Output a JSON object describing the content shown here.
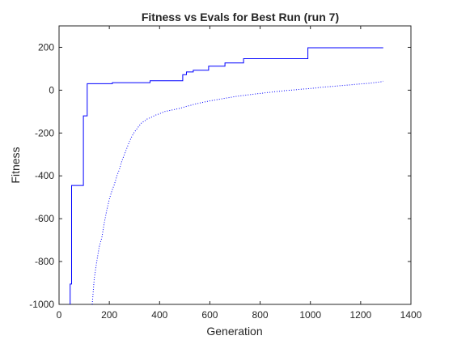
{
  "chart_data": {
    "type": "line",
    "title": "Fitness vs Evals for Best Run (run 7)",
    "xlabel": "Generation",
    "ylabel": "Fitness",
    "xlim": [
      0,
      1400
    ],
    "ylim": [
      -1000,
      300
    ],
    "xticks": [
      0,
      200,
      400,
      600,
      800,
      1000,
      1200,
      1400
    ],
    "yticks": [
      -1000,
      -800,
      -600,
      -400,
      -200,
      0,
      200
    ],
    "grid": false,
    "legend": "none",
    "series": [
      {
        "style": "solid",
        "color": "#0000ff",
        "step": true,
        "points": [
          [
            44,
            -1000
          ],
          [
            44,
            -905
          ],
          [
            50,
            -905
          ],
          [
            50,
            -445
          ],
          [
            97,
            -445
          ],
          [
            97,
            -120
          ],
          [
            112,
            -120
          ],
          [
            112,
            30
          ],
          [
            212,
            30
          ],
          [
            212,
            35
          ],
          [
            362,
            35
          ],
          [
            362,
            44
          ],
          [
            492,
            44
          ],
          [
            492,
            72
          ],
          [
            507,
            72
          ],
          [
            507,
            85
          ],
          [
            534,
            85
          ],
          [
            534,
            93
          ],
          [
            595,
            93
          ],
          [
            595,
            112
          ],
          [
            660,
            112
          ],
          [
            660,
            127
          ],
          [
            734,
            127
          ],
          [
            734,
            147
          ],
          [
            990,
            147
          ],
          [
            990,
            198
          ],
          [
            1290,
            198
          ]
        ]
      },
      {
        "style": "dotted",
        "color": "#0000ff",
        "step": false,
        "points": [
          [
            132,
            -1000
          ],
          [
            140,
            -880
          ],
          [
            150,
            -800
          ],
          [
            160,
            -730
          ],
          [
            170,
            -690
          ],
          [
            180,
            -620
          ],
          [
            190,
            -560
          ],
          [
            200,
            -510
          ],
          [
            210,
            -470
          ],
          [
            220,
            -440
          ],
          [
            230,
            -400
          ],
          [
            240,
            -370
          ],
          [
            250,
            -330
          ],
          [
            260,
            -300
          ],
          [
            270,
            -270
          ],
          [
            280,
            -240
          ],
          [
            290,
            -215
          ],
          [
            300,
            -195
          ],
          [
            310,
            -180
          ],
          [
            320,
            -165
          ],
          [
            330,
            -150
          ],
          [
            340,
            -145
          ],
          [
            350,
            -135
          ],
          [
            360,
            -130
          ],
          [
            370,
            -125
          ],
          [
            380,
            -118
          ],
          [
            400,
            -110
          ],
          [
            420,
            -100
          ],
          [
            440,
            -95
          ],
          [
            460,
            -90
          ],
          [
            480,
            -85
          ],
          [
            500,
            -78
          ],
          [
            520,
            -72
          ],
          [
            540,
            -65
          ],
          [
            560,
            -60
          ],
          [
            580,
            -55
          ],
          [
            600,
            -50
          ],
          [
            620,
            -46
          ],
          [
            640,
            -42
          ],
          [
            660,
            -38
          ],
          [
            680,
            -34
          ],
          [
            700,
            -30
          ],
          [
            720,
            -27
          ],
          [
            740,
            -24
          ],
          [
            760,
            -21
          ],
          [
            780,
            -18
          ],
          [
            800,
            -15
          ],
          [
            820,
            -12
          ],
          [
            840,
            -10
          ],
          [
            860,
            -7
          ],
          [
            880,
            -5
          ],
          [
            900,
            -2
          ],
          [
            920,
            0
          ],
          [
            940,
            2
          ],
          [
            960,
            4
          ],
          [
            980,
            6
          ],
          [
            1000,
            8
          ],
          [
            1020,
            10
          ],
          [
            1040,
            13
          ],
          [
            1060,
            15
          ],
          [
            1080,
            17
          ],
          [
            1100,
            19
          ],
          [
            1120,
            21
          ],
          [
            1140,
            23
          ],
          [
            1160,
            25
          ],
          [
            1180,
            27
          ],
          [
            1200,
            29
          ],
          [
            1220,
            31
          ],
          [
            1240,
            33
          ],
          [
            1260,
            36
          ],
          [
            1280,
            39
          ],
          [
            1290,
            42
          ]
        ]
      }
    ]
  }
}
